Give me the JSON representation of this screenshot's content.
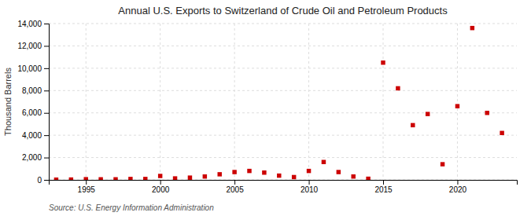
{
  "chart_data": {
    "type": "scatter",
    "title": "Annual U.S. Exports to Switzerland of Crude Oil and Petroleum Products",
    "y_label": "Thousand Barrels",
    "annotation": "Source: U.S. Energy Information Administration",
    "x": [
      1993,
      1994,
      1995,
      1996,
      1997,
      1998,
      1999,
      2000,
      2001,
      2002,
      2003,
      2004,
      2005,
      2006,
      2007,
      2008,
      2009,
      2010,
      2011,
      2012,
      2013,
      2014,
      2015,
      2016,
      2017,
      2018,
      2019,
      2020,
      2021,
      2022,
      2023
    ],
    "values": [
      20,
      30,
      60,
      50,
      50,
      80,
      80,
      350,
      130,
      200,
      300,
      500,
      700,
      800,
      650,
      380,
      250,
      800,
      1600,
      700,
      300,
      100,
      10500,
      8200,
      4900,
      5900,
      1400,
      6600,
      13600,
      6000,
      4200
    ],
    "color": "#cc0000",
    "marker": "square",
    "grid": true,
    "xlim": [
      1992.5,
      2024
    ],
    "xticks": [
      1995,
      2000,
      2005,
      2010,
      2015,
      2020
    ],
    "ylim": [
      0,
      14000
    ],
    "yticks": [
      0,
      {
        "value": 2000,
        "label": "2,000"
      },
      {
        "value": 4000,
        "label": "4,000"
      },
      {
        "value": 6000,
        "label": "6,000"
      },
      {
        "value": 8000,
        "label": "8,000"
      },
      {
        "value": 10000,
        "label": "10,000"
      },
      {
        "value": 12000,
        "label": "12,000"
      },
      {
        "value": 14000,
        "label": "14,000"
      }
    ]
  }
}
